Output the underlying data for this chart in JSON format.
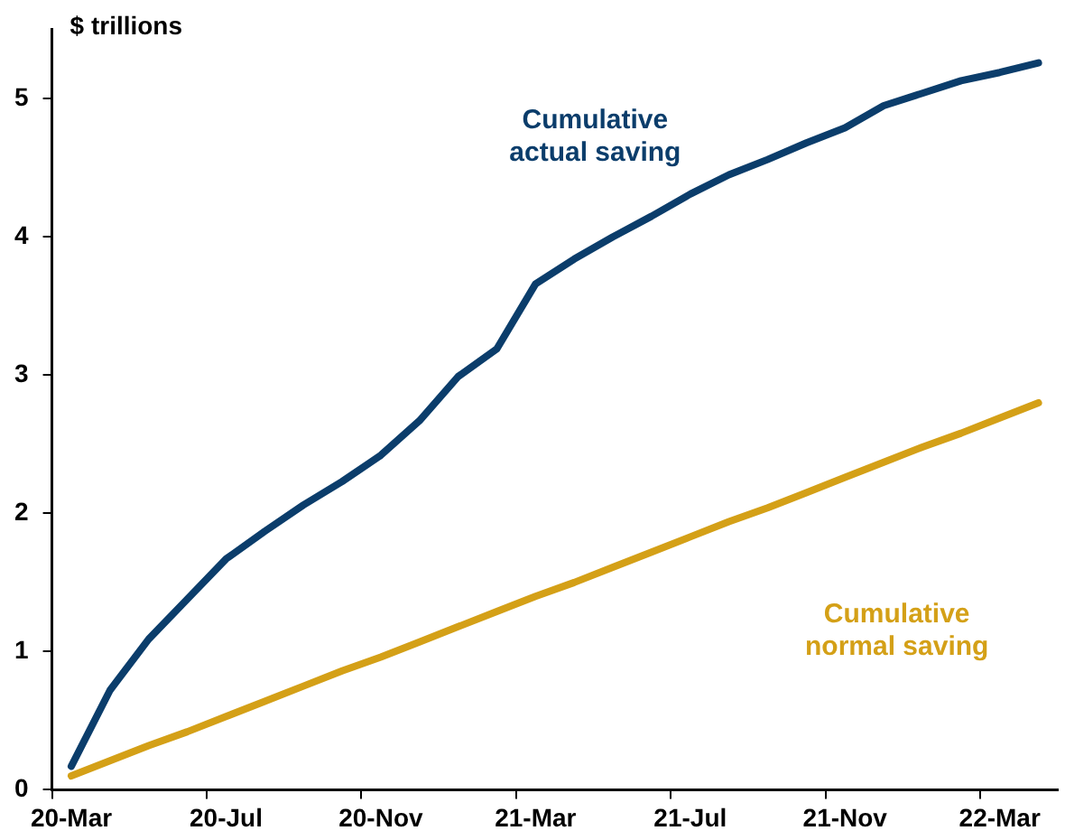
{
  "chart_data": {
    "type": "line",
    "ylabel": "$ trillions",
    "categories": [
      "20-Mar",
      null,
      null,
      null,
      "20-Jul",
      null,
      null,
      null,
      "20-Nov",
      null,
      null,
      null,
      "21-Mar",
      null,
      null,
      null,
      "21-Jul",
      null,
      null,
      null,
      "21-Nov",
      null,
      null,
      null,
      "22-Mar",
      null
    ],
    "series": [
      {
        "name": "Cumulative actual saving",
        "color": "#0b3d6b",
        "values": [
          0.17,
          0.72,
          1.09,
          1.38,
          1.67,
          1.87,
          2.06,
          2.23,
          2.42,
          2.67,
          2.99,
          3.19,
          3.66,
          3.84,
          4.0,
          4.15,
          4.31,
          4.45,
          4.56,
          4.68,
          4.79,
          4.95,
          5.04,
          5.13,
          5.19,
          5.26
        ]
      },
      {
        "name": "Cumulative normal saving",
        "color": "#d4a017",
        "values": [
          0.1,
          0.21,
          0.32,
          0.42,
          0.53,
          0.64,
          0.75,
          0.86,
          0.96,
          1.07,
          1.18,
          1.29,
          1.4,
          1.5,
          1.61,
          1.72,
          1.83,
          1.94,
          2.04,
          2.15,
          2.26,
          2.37,
          2.48,
          2.58,
          2.69,
          2.8
        ]
      }
    ],
    "ylim": [
      0,
      5.5
    ],
    "yticks": [
      0,
      1,
      2,
      3,
      4,
      5
    ],
    "grid": false,
    "legend": false,
    "marker": "none",
    "line_style": "solid"
  }
}
